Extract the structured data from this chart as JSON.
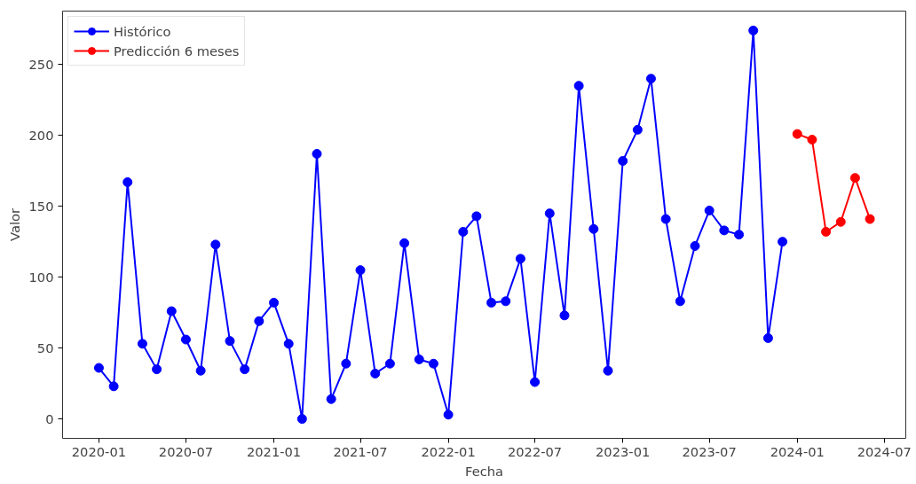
{
  "chart_data": {
    "type": "line",
    "xlabel": "Fecha",
    "ylabel": "Valor",
    "x": [
      "2020-01",
      "2020-02",
      "2020-03",
      "2020-04",
      "2020-05",
      "2020-06",
      "2020-07",
      "2020-08",
      "2020-09",
      "2020-10",
      "2020-11",
      "2020-12",
      "2021-01",
      "2021-02",
      "2021-03",
      "2021-04",
      "2021-05",
      "2021-06",
      "2021-07",
      "2021-08",
      "2021-09",
      "2021-10",
      "2021-11",
      "2021-12",
      "2022-01",
      "2022-02",
      "2022-03",
      "2022-04",
      "2022-05",
      "2022-06",
      "2022-07",
      "2022-08",
      "2022-09",
      "2022-10",
      "2022-11",
      "2022-12",
      "2023-01",
      "2023-02",
      "2023-03",
      "2023-04",
      "2023-05",
      "2023-06",
      "2023-07",
      "2023-08",
      "2023-09",
      "2023-10",
      "2023-11",
      "2023-12"
    ],
    "series": [
      {
        "name": "Histórico",
        "color": "#0000ff",
        "values": [
          36,
          23,
          167,
          53,
          35,
          76,
          56,
          34,
          123,
          55,
          35,
          69,
          82,
          53,
          0,
          187,
          14,
          39,
          105,
          32,
          39,
          124,
          42,
          39,
          3,
          132,
          143,
          82,
          83,
          113,
          26,
          145,
          73,
          235,
          134,
          34,
          182,
          204,
          240,
          141,
          83,
          122,
          147,
          133,
          130,
          274,
          57,
          125
        ]
      },
      {
        "name": "Predicción 6 meses",
        "color": "#ff0000",
        "x": [
          "2024-01",
          "2024-02",
          "2024-03",
          "2024-04",
          "2024-05",
          "2024-06"
        ],
        "values": [
          201,
          197,
          132,
          139,
          170,
          141
        ]
      }
    ],
    "xlim": [
      "2019-10-17",
      "2024-08-15"
    ],
    "ylim": [
      -13.7,
      287.7
    ],
    "xticks": [
      "2020-01",
      "2020-07",
      "2021-01",
      "2021-07",
      "2022-01",
      "2022-07",
      "2023-01",
      "2023-07",
      "2024-01",
      "2024-07"
    ],
    "yticks": [
      0,
      50,
      100,
      150,
      200,
      250
    ],
    "grid": false,
    "legend": "top left",
    "marker": "circle",
    "line_style": "solid"
  }
}
